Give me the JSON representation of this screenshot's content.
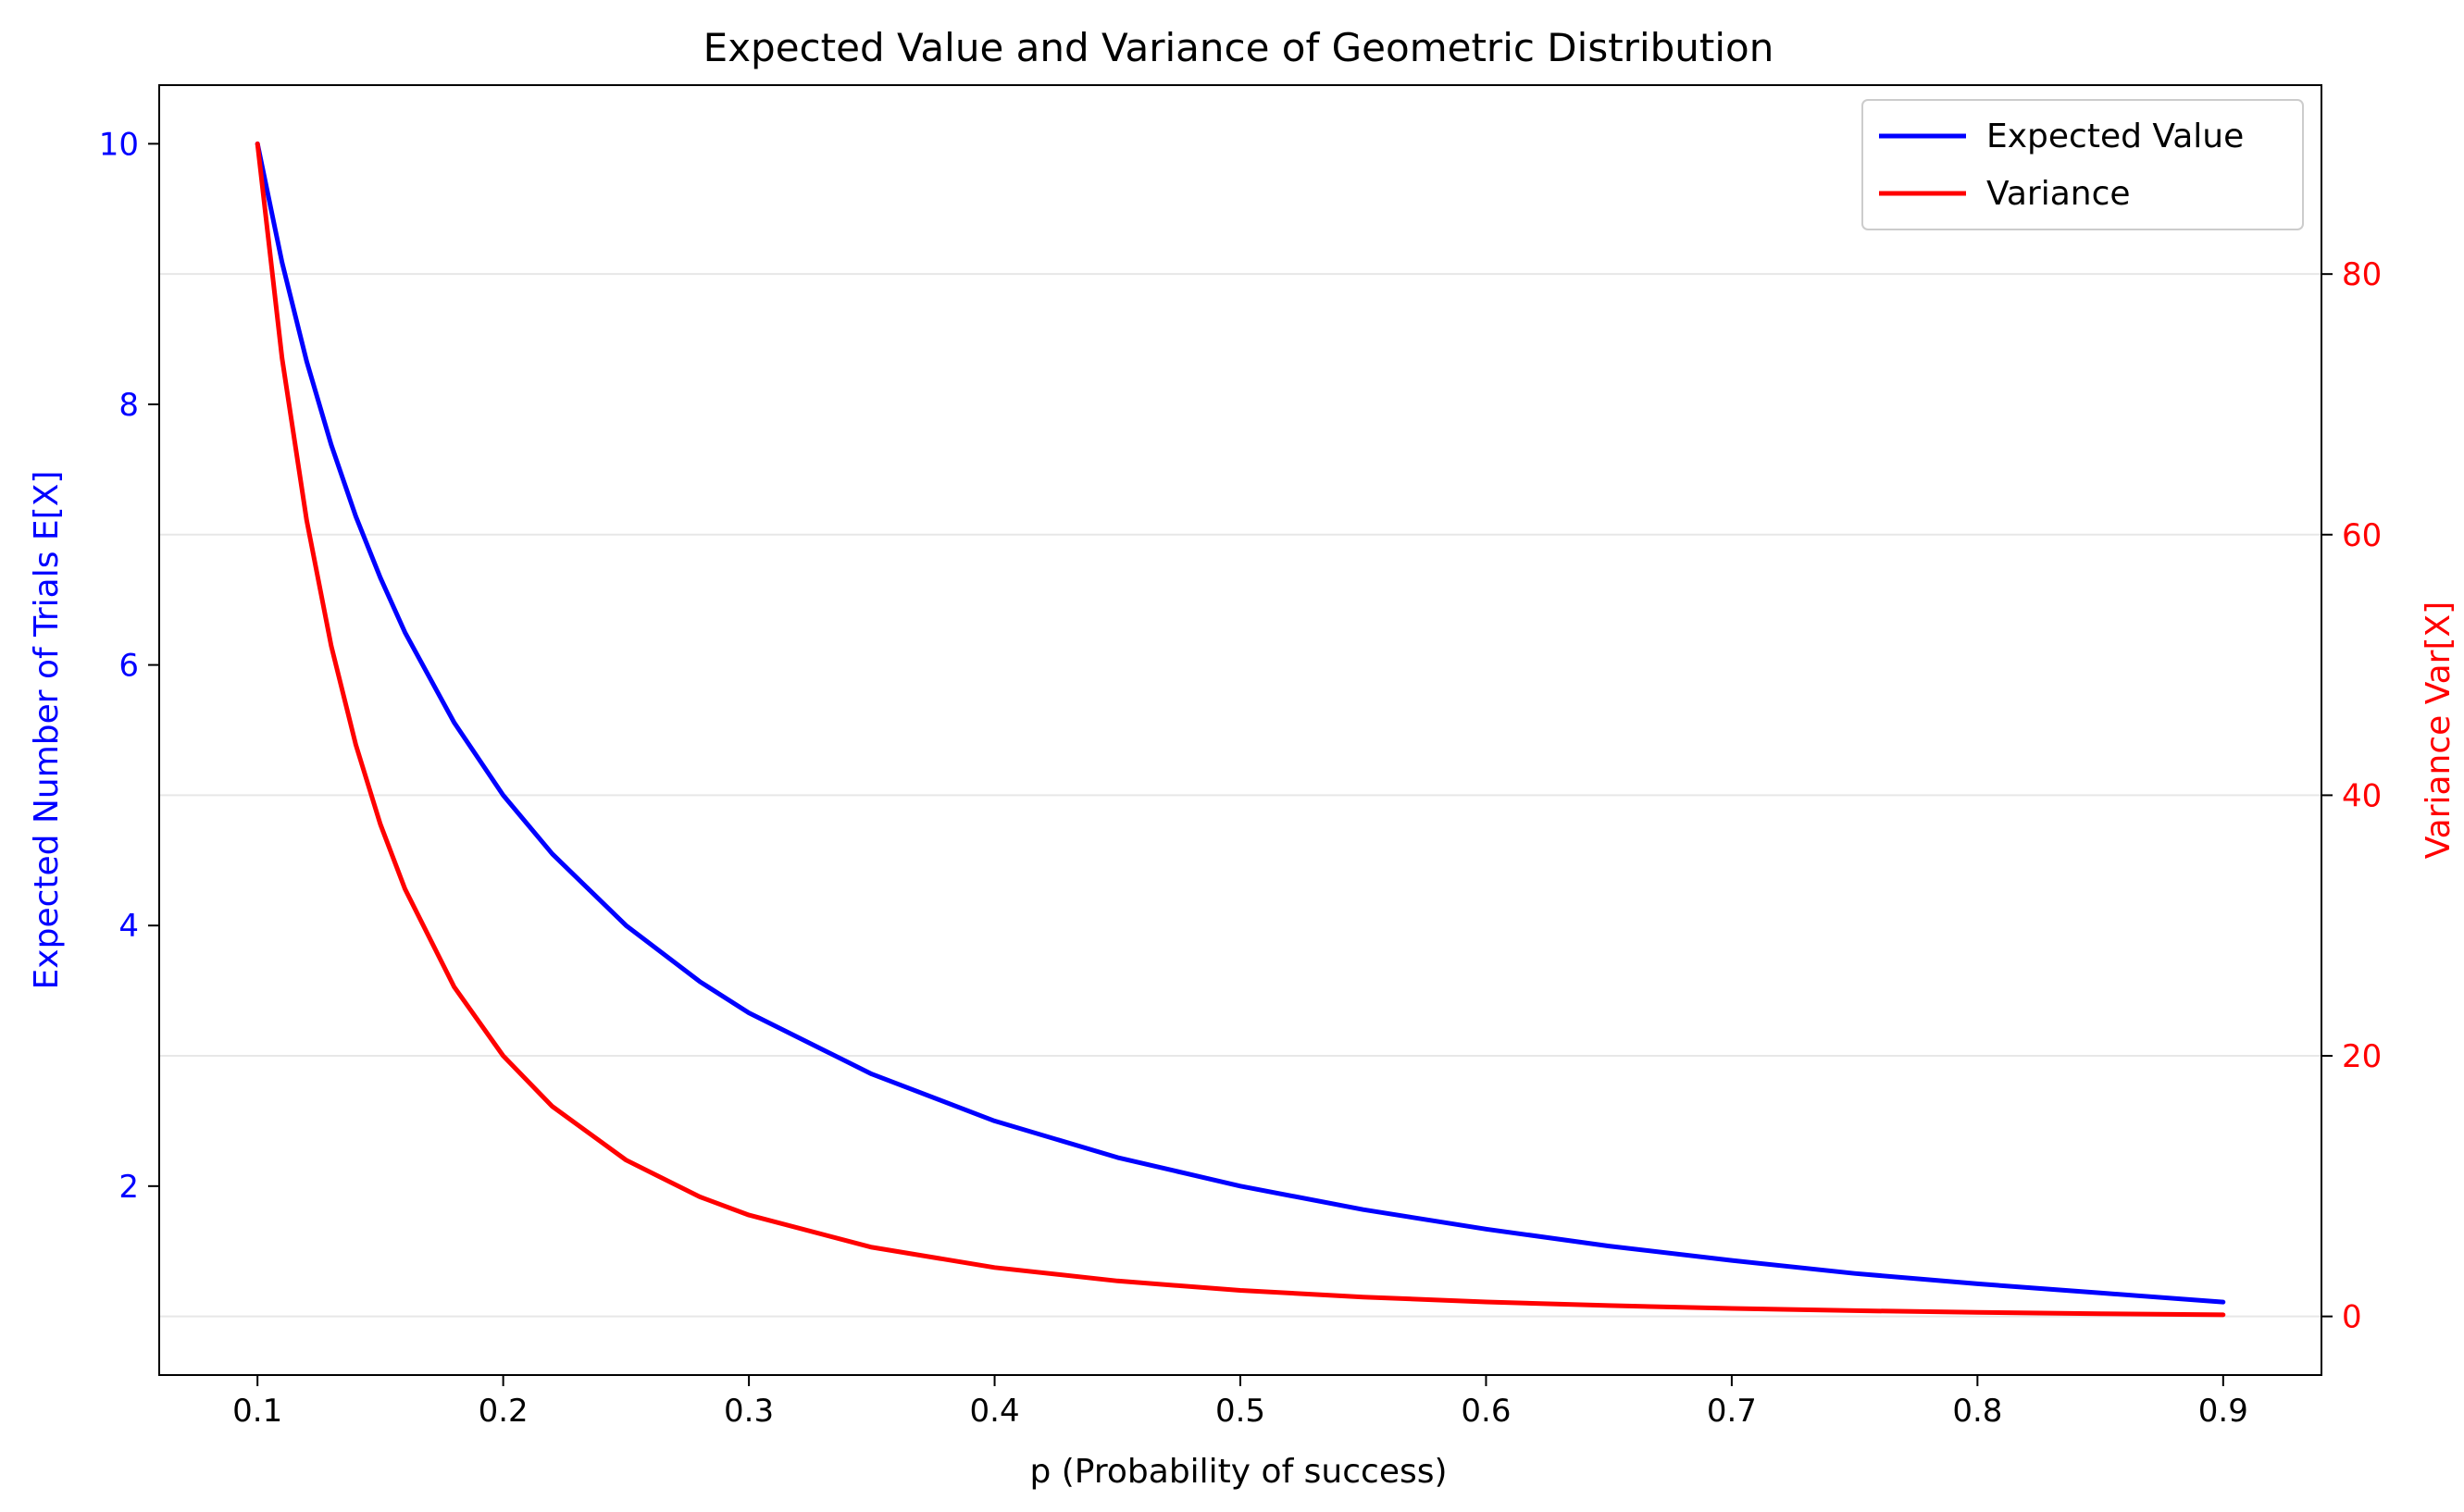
{
  "chart_data": {
    "type": "line",
    "title": "Expected Value and Variance of Geometric Distribution",
    "xlabel": "p (Probability of success)",
    "ylabel_left": "Expected Number of Trials E[X]",
    "ylabel_right": "Variance Var[X]",
    "xlim": [
      0.06,
      0.94
    ],
    "ylim_left": [
      0.55,
      10.45
    ],
    "ylim_right": [
      -4.5,
      94.5
    ],
    "x_ticks": [
      "0.1",
      "0.2",
      "0.3",
      "0.4",
      "0.5",
      "0.6",
      "0.7",
      "0.8",
      "0.9"
    ],
    "y_ticks_left": [
      "2",
      "4",
      "6",
      "8",
      "10"
    ],
    "y_ticks_right": [
      "0",
      "20",
      "40",
      "60",
      "80"
    ],
    "grid": "horizontal, right axis",
    "legend_position": "top-right",
    "series": [
      {
        "name": "Expected Value",
        "axis": "left",
        "color": "#0000ff",
        "x": [
          0.1,
          0.11,
          0.12,
          0.13,
          0.14,
          0.15,
          0.16,
          0.18,
          0.2,
          0.22,
          0.25,
          0.28,
          0.3,
          0.35,
          0.4,
          0.45,
          0.5,
          0.55,
          0.6,
          0.65,
          0.7,
          0.75,
          0.8,
          0.85,
          0.9
        ],
        "values": [
          10.0,
          9.09,
          8.33,
          7.69,
          7.14,
          6.67,
          6.25,
          5.56,
          5.0,
          4.55,
          4.0,
          3.57,
          3.33,
          2.86,
          2.5,
          2.22,
          2.0,
          1.82,
          1.67,
          1.54,
          1.43,
          1.33,
          1.25,
          1.18,
          1.11
        ]
      },
      {
        "name": "Variance",
        "axis": "right",
        "color": "#ff0000",
        "x": [
          0.1,
          0.11,
          0.12,
          0.13,
          0.14,
          0.15,
          0.16,
          0.18,
          0.2,
          0.22,
          0.25,
          0.28,
          0.3,
          0.35,
          0.4,
          0.45,
          0.5,
          0.55,
          0.6,
          0.65,
          0.7,
          0.75,
          0.8,
          0.85,
          0.9
        ],
        "values": [
          90.0,
          73.55,
          61.11,
          51.48,
          43.88,
          37.78,
          32.81,
          25.31,
          20.0,
          16.12,
          12.0,
          9.18,
          7.78,
          5.31,
          3.75,
          2.72,
          2.0,
          1.49,
          1.11,
          0.83,
          0.61,
          0.44,
          0.31,
          0.21,
          0.12
        ]
      }
    ]
  }
}
